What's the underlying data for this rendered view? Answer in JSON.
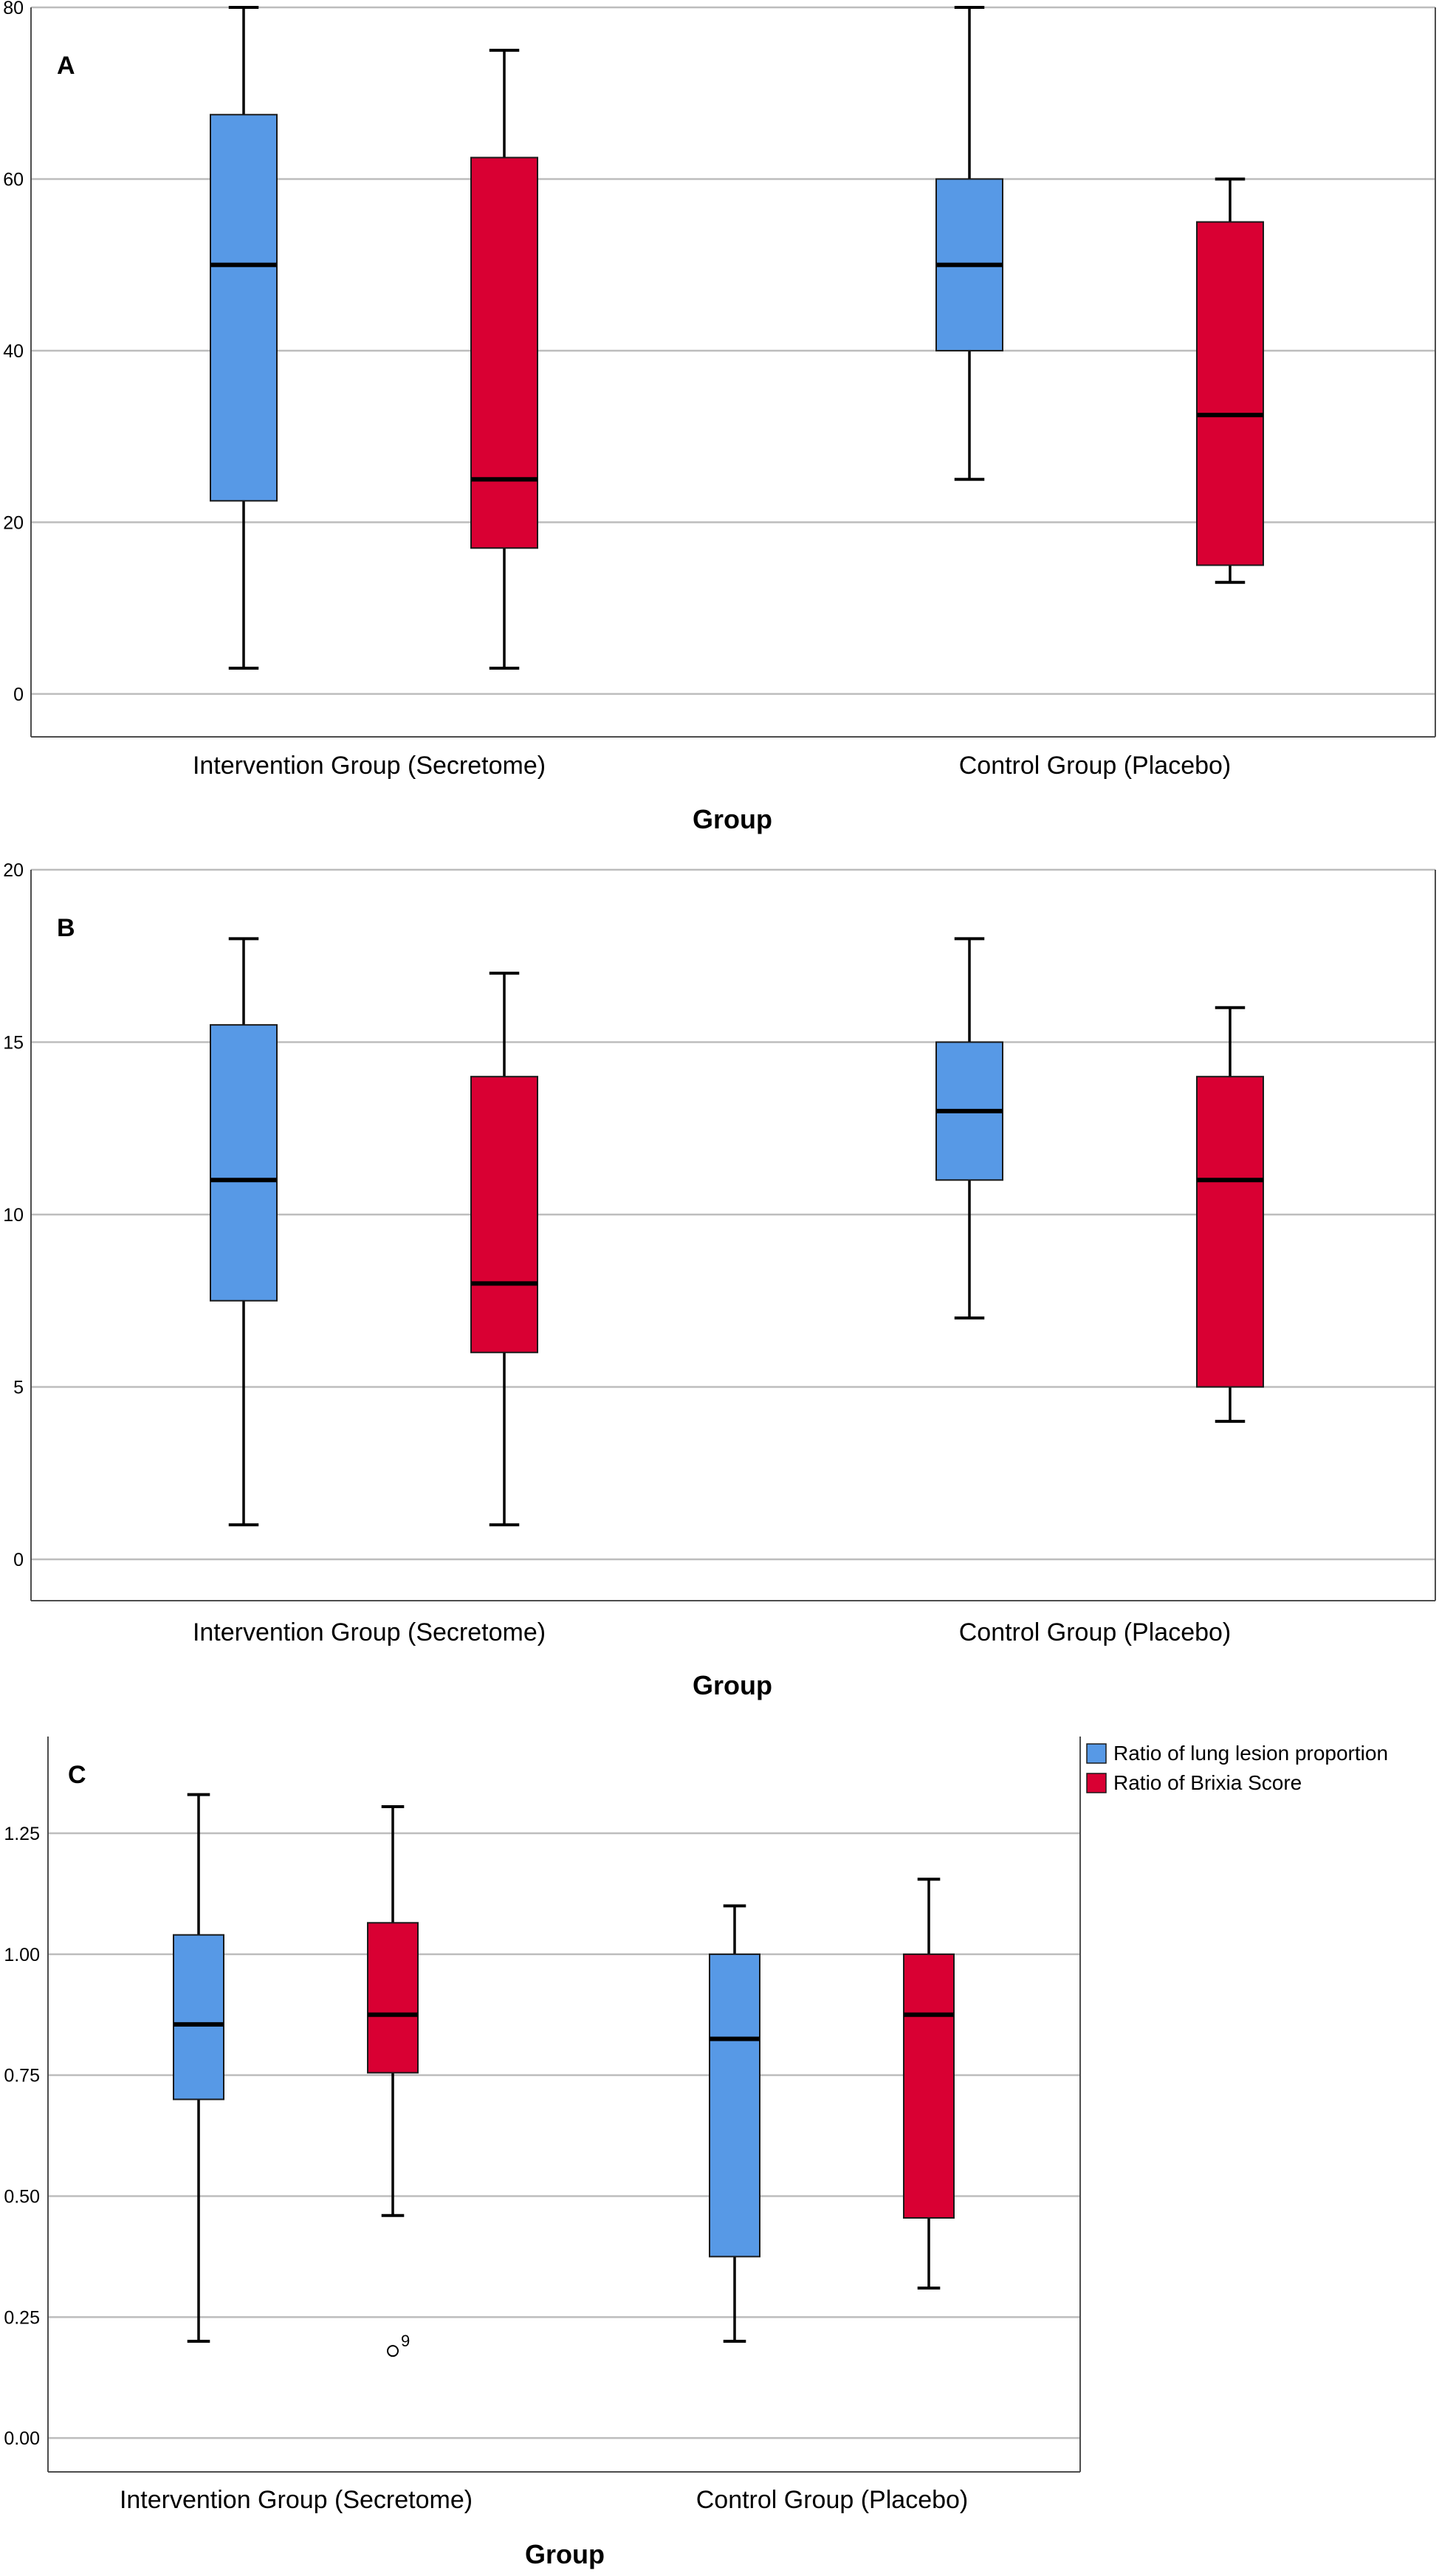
{
  "colors": {
    "series1": "#5799e6",
    "series2": "#d90033",
    "grid": "#bdbdbd",
    "axis": "#4d4d4d",
    "whisker": "#000000",
    "text": "#000000"
  },
  "chart_data": [
    {
      "type": "boxplot",
      "panel_label": "A",
      "xlabel": "Group",
      "ylabel": "",
      "categories": [
        "Intervention Group (Secretome)",
        "Control Group (Placebo)"
      ],
      "ylim": [
        -5,
        80
      ],
      "yticks": [
        0,
        20,
        40,
        60,
        80
      ],
      "ytick_labels": [
        "0",
        "20",
        "40",
        "60",
        "80"
      ],
      "series": [
        {
          "boxes": [
            {
              "min": 3,
              "q1": 22.5,
              "median": 50,
              "q3": 67.5,
              "max": 80
            },
            {
              "min": 25,
              "q1": 40,
              "median": 50,
              "q3": 60,
              "max": 80
            }
          ]
        },
        {
          "boxes": [
            {
              "min": 3,
              "q1": 17,
              "median": 25,
              "q3": 62.5,
              "max": 75
            },
            {
              "min": 13,
              "q1": 15,
              "median": 32.5,
              "q3": 55,
              "max": 60
            }
          ]
        }
      ],
      "outliers": []
    },
    {
      "type": "boxplot",
      "panel_label": "B",
      "xlabel": "Group",
      "ylabel": "",
      "categories": [
        "Intervention Group (Secretome)",
        "Control Group (Placebo)"
      ],
      "ylim": [
        -1.2,
        20
      ],
      "yticks": [
        0,
        5,
        10,
        15,
        20
      ],
      "ytick_labels": [
        "0",
        "5",
        "10",
        "15",
        "20"
      ],
      "series": [
        {
          "boxes": [
            {
              "min": 1,
              "q1": 7.5,
              "median": 11,
              "q3": 15.5,
              "max": 18
            },
            {
              "min": 7,
              "q1": 11,
              "median": 13,
              "q3": 15,
              "max": 18
            }
          ]
        },
        {
          "boxes": [
            {
              "min": 1,
              "q1": 6,
              "median": 8,
              "q3": 14,
              "max": 17
            },
            {
              "min": 4,
              "q1": 5,
              "median": 11,
              "q3": 14,
              "max": 16
            }
          ]
        }
      ],
      "outliers": []
    },
    {
      "type": "boxplot",
      "panel_label": "C",
      "xlabel": "Group",
      "ylabel": "",
      "categories": [
        "Intervention Group (Secretome)",
        "Control Group (Placebo)"
      ],
      "ylim": [
        -0.07,
        1.45
      ],
      "yticks": [
        0,
        0.25,
        0.5,
        0.75,
        1.0,
        1.25
      ],
      "ytick_labels": [
        "0.00",
        "0.25",
        "0.50",
        "0.75",
        "1.00",
        "1.25"
      ],
      "legend_position": "top-right",
      "series": [
        {
          "name": "Ratio of lung lesion proportion",
          "boxes": [
            {
              "min": 0.2,
              "q1": 0.7,
              "median": 0.855,
              "q3": 1.04,
              "max": 1.33
            },
            {
              "min": 0.2,
              "q1": 0.375,
              "median": 0.825,
              "q3": 1.0,
              "max": 1.1
            }
          ]
        },
        {
          "name": "Ratio of Brixia Score",
          "boxes": [
            {
              "min": 0.46,
              "q1": 0.755,
              "median": 0.875,
              "q3": 1.065,
              "max": 1.305
            },
            {
              "min": 0.31,
              "q1": 0.455,
              "median": 0.875,
              "q3": 1.0,
              "max": 1.155
            }
          ]
        }
      ],
      "outliers": [
        {
          "series": 1,
          "category": 0,
          "value": 0.18,
          "label": "9"
        }
      ]
    }
  ]
}
